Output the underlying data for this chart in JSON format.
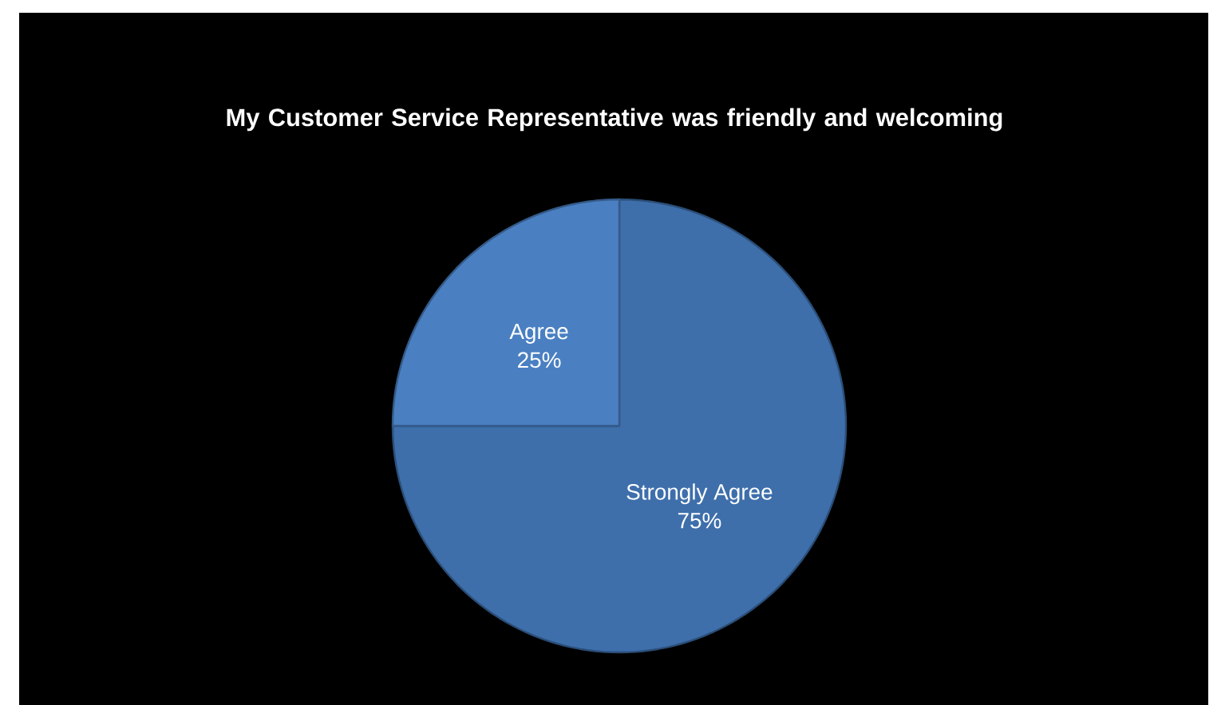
{
  "chart_data": {
    "type": "pie",
    "title": "My Customer Service Representative was friendly and welcoming",
    "categories": [
      "Strongly Agree",
      "Agree"
    ],
    "values": [
      75,
      25
    ],
    "colors": [
      "#3e6fab",
      "#4a80c2"
    ],
    "value_labels": [
      "75%",
      "25%"
    ]
  }
}
